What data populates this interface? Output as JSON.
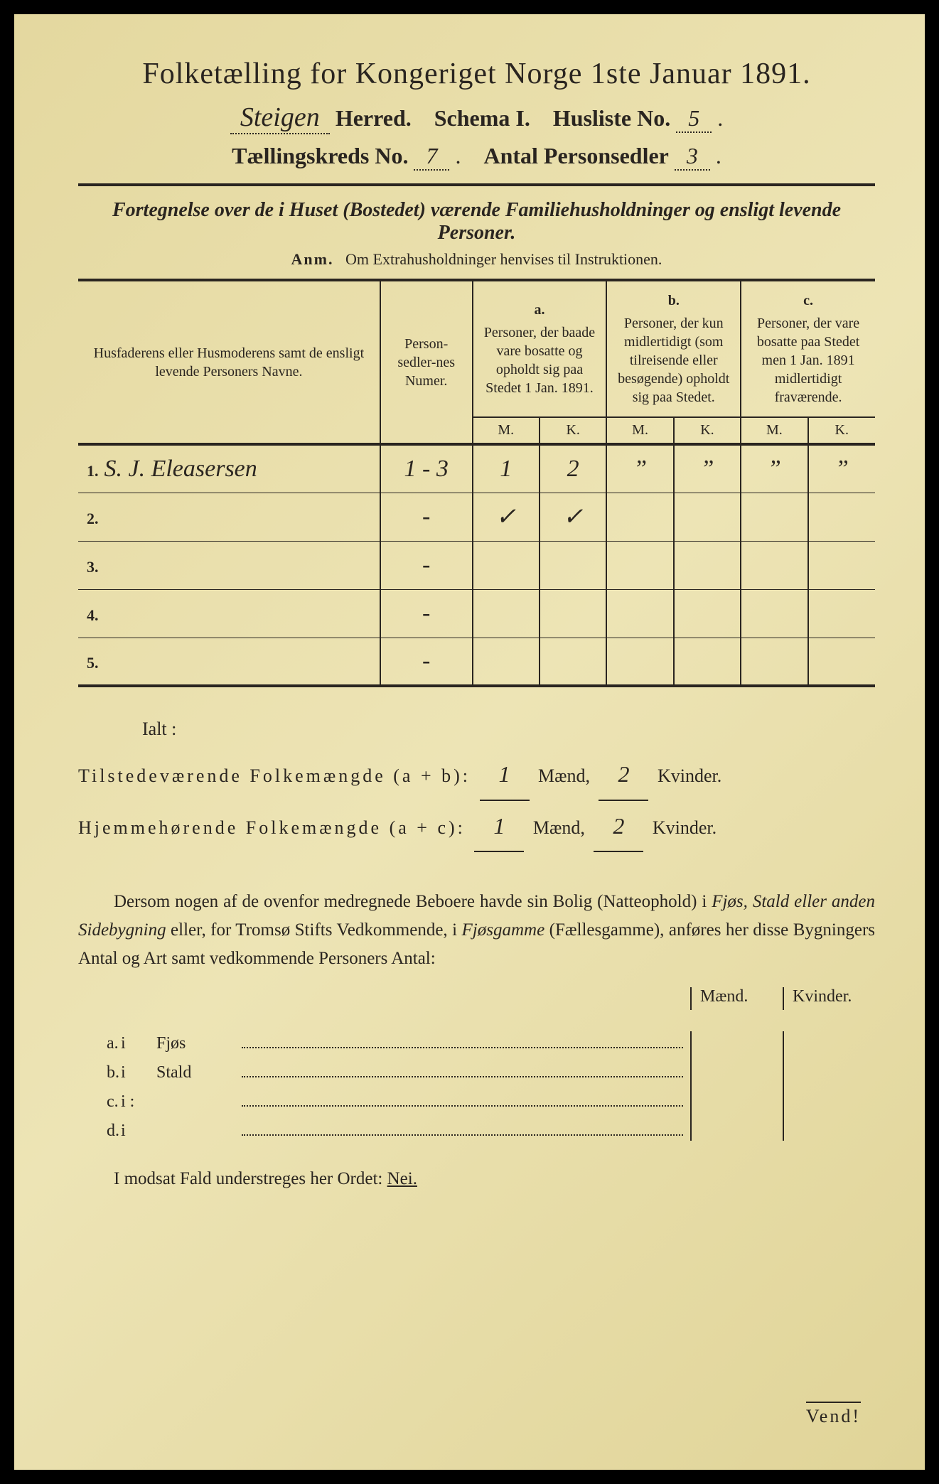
{
  "title": "Folketælling for Kongeriget Norge 1ste Januar 1891.",
  "header": {
    "herred_value": "Steigen",
    "herred_label": "Herred.",
    "schema_label": "Schema I.",
    "husliste_label": "Husliste No.",
    "husliste_value": "5",
    "kreds_label": "Tællingskreds No.",
    "kreds_value": "7",
    "antal_label": "Antal Personsedler",
    "antal_value": "3"
  },
  "subtitle": "Fortegnelse over de i Huset (Bostedet) værende Familiehusholdninger og ensligt levende Personer.",
  "anm_label": "Anm.",
  "anm_text": "Om Extrahusholdninger henvises til Instruktionen.",
  "columns": {
    "name": "Husfaderens eller Husmoderens samt de ensligt levende Personers Navne.",
    "person_num": "Person-sedler-nes Numer.",
    "a_label": "a.",
    "a_text": "Personer, der baade vare bosatte og opholdt sig paa Stedet 1 Jan. 1891.",
    "b_label": "b.",
    "b_text": "Personer, der kun midlertidigt (som tilreisende eller besøgende) opholdt sig paa Stedet.",
    "c_label": "c.",
    "c_text": "Personer, der vare bosatte paa Stedet men 1 Jan. 1891 midlertidigt fraværende.",
    "m": "M.",
    "k": "K."
  },
  "rows": [
    {
      "n": "1.",
      "name": "S. J. Eleasersen",
      "numer": "1 - 3",
      "am": "1",
      "ak": "2",
      "bm": "”",
      "bk": "”",
      "cm": "”",
      "ck": "”"
    },
    {
      "n": "2.",
      "name": "",
      "numer": "-",
      "am": "✓",
      "ak": "✓",
      "bm": "",
      "bk": "",
      "cm": "",
      "ck": ""
    },
    {
      "n": "3.",
      "name": "",
      "numer": "-",
      "am": "",
      "ak": "",
      "bm": "",
      "bk": "",
      "cm": "",
      "ck": ""
    },
    {
      "n": "4.",
      "name": "",
      "numer": "-",
      "am": "",
      "ak": "",
      "bm": "",
      "bk": "",
      "cm": "",
      "ck": ""
    },
    {
      "n": "5.",
      "name": "",
      "numer": "-",
      "am": "",
      "ak": "",
      "bm": "",
      "bk": "",
      "cm": "",
      "ck": ""
    }
  ],
  "summary": {
    "ialt": "Ialt :",
    "tilstede_label": "Tilstedeværende Folkemængde (a + b):",
    "tilstede_m": "1",
    "tilstede_k": "2",
    "hjemme_label": "Hjemmehørende Folkemængde (a + c):",
    "hjemme_m": "1",
    "hjemme_k": "2",
    "maend": "Mænd,",
    "kvinder": "Kvinder."
  },
  "paragraph": "Dersom nogen af de ovenfor medregnede Beboere havde sin Bolig (Natteophold) i Fjøs, Stald eller anden Sidebygning eller, for Tromsø Stifts Vedkommende, i Fjøsgamme (Fællesgamme), anføres her disse Bygningers Antal og Art samt vedkommende Personers Antal:",
  "mk": {
    "m": "Mænd.",
    "k": "Kvinder."
  },
  "buildings": [
    {
      "lbl": "a.",
      "i": "i",
      "type": "Fjøs"
    },
    {
      "lbl": "b.",
      "i": "i",
      "type": "Stald"
    },
    {
      "lbl": "c.",
      "i": "i :",
      "type": ""
    },
    {
      "lbl": "d.",
      "i": "i",
      "type": ""
    }
  ],
  "nei_line": "I modsat Fald understreges her Ordet:",
  "nei": "Nei.",
  "vend": "Vend!"
}
